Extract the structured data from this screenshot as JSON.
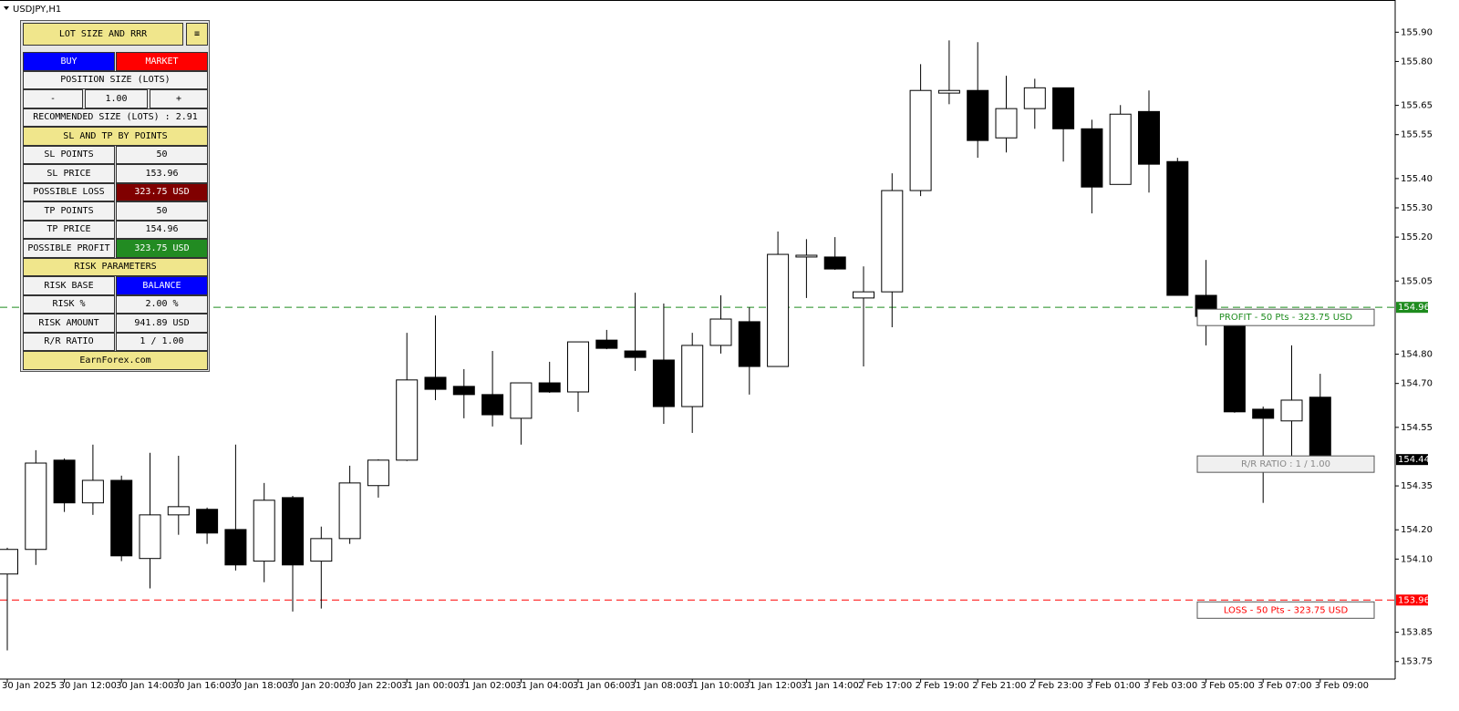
{
  "chart_data": {
    "type": "candlestick",
    "title": "USDJPY,H1",
    "categories": [
      "30 Jan 2025",
      null,
      "30 Jan 12:00",
      null,
      "30 Jan 14:00",
      null,
      "30 Jan 16:00",
      null,
      "30 Jan 18:00",
      null,
      "30 Jan 20:00",
      null,
      "30 Jan 22:00",
      null,
      "31 Jan 00:00",
      null,
      "31 Jan 02:00",
      null,
      "31 Jan 04:00",
      null,
      "31 Jan 06:00",
      null,
      "31 Jan 08:00",
      null,
      "31 Jan 10:00",
      null,
      "31 Jan 12:00",
      null,
      "31 Jan 14:00",
      null,
      "2 Feb 17:00",
      null,
      "2 Feb 19:00",
      null,
      "2 Feb 21:00",
      null,
      "2 Feb 23:00",
      null,
      "3 Feb 01:00",
      null,
      "3 Feb 03:00",
      null,
      "3 Feb 05:00",
      null,
      "3 Feb 07:00",
      null,
      "3 Feb 09:00"
    ],
    "open": [
      154.049,
      154.133,
      154.438,
      154.292,
      154.369,
      154.102,
      154.251,
      154.27,
      154.201,
      154.093,
      154.31,
      154.093,
      154.17,
      154.351,
      154.438,
      154.721,
      154.69,
      154.662,
      154.581,
      154.702,
      154.671,
      154.848,
      154.811,
      154.78,
      154.621,
      154.83,
      154.911,
      154.758,
      155.132,
      155.132,
      154.992,
      155.013,
      155.359,
      155.692,
      155.701,
      155.539,
      155.639,
      155.71,
      155.57,
      155.38,
      155.629,
      155.458,
      155.001,
      154.929,
      154.612,
      154.572,
      154.653
    ],
    "high": [
      154.139,
      154.472,
      154.444,
      154.491,
      154.385,
      154.463,
      154.453,
      154.276,
      154.491,
      154.36,
      154.316,
      154.211,
      154.419,
      154.441,
      154.873,
      154.932,
      154.749,
      154.811,
      154.702,
      154.774,
      154.842,
      154.883,
      155.01,
      154.973,
      154.873,
      155.001,
      154.96,
      155.219,
      155.193,
      155.2,
      155.1,
      155.418,
      155.791,
      155.872,
      155.866,
      155.751,
      155.741,
      155.71,
      155.601,
      155.651,
      155.701,
      155.471,
      155.122,
      154.954,
      154.621,
      154.83,
      154.733
    ],
    "low": [
      153.788,
      154.08,
      154.261,
      154.251,
      154.093,
      154.0,
      154.183,
      154.152,
      154.061,
      154.021,
      153.921,
      153.931,
      154.152,
      154.31,
      154.435,
      154.643,
      154.581,
      154.553,
      154.491,
      154.668,
      154.603,
      154.817,
      154.743,
      154.562,
      154.531,
      154.802,
      154.662,
      154.758,
      154.992,
      155.088,
      154.758,
      154.892,
      155.34,
      155.654,
      155.471,
      155.489,
      155.57,
      155.458,
      155.281,
      155.38,
      155.352,
      155.001,
      154.83,
      154.6,
      154.292,
      154.419,
      154.438
    ],
    "close": [
      154.133,
      154.428,
      154.292,
      154.369,
      154.111,
      154.251,
      154.279,
      154.189,
      154.08,
      154.301,
      154.08,
      154.17,
      154.36,
      154.438,
      154.712,
      154.68,
      154.662,
      154.593,
      154.702,
      154.671,
      154.842,
      154.82,
      154.789,
      154.621,
      154.83,
      154.92,
      154.758,
      155.141,
      155.138,
      155.091,
      155.013,
      155.359,
      155.701,
      155.701,
      155.53,
      155.639,
      155.71,
      155.57,
      155.371,
      155.62,
      155.449,
      155.001,
      154.929,
      154.603,
      154.581,
      154.643,
      154.438
    ],
    "bull_color": "#ffffff",
    "bear_color": "#000000",
    "ylim": [
      153.69,
      156.01
    ],
    "yticks": [
      {
        "value": 155.9,
        "label": "155.90"
      },
      {
        "value": 155.8,
        "label": "155.80"
      },
      155.65,
      155.55,
      {
        "value": 155.4,
        "label": "155.40"
      },
      {
        "value": 155.3,
        "label": "155.30"
      },
      {
        "value": 155.2,
        "label": "155.20"
      },
      155.05,
      {
        "value": 154.8,
        "label": "154.80"
      },
      {
        "value": 154.7,
        "label": "154.70"
      },
      154.55,
      154.35,
      {
        "value": 154.2,
        "label": "154.20"
      },
      {
        "value": 154.1,
        "label": "154.10"
      },
      153.85,
      153.75
    ],
    "price_lines": [
      {
        "value": 154.96,
        "color": "#1e8c1e",
        "label": "PROFIT - 50 Pts - 323.75 USD"
      },
      {
        "value": 153.96,
        "color": "#ff0000",
        "label": "LOSS - 50 Pts - 323.75 USD"
      }
    ],
    "current_price": 154.44,
    "rr_label": "R/R RATIO : 1 / 1.00"
  },
  "panel": {
    "title": "LOT SIZE AND RRR",
    "direction": [
      "BUY",
      "MARKET"
    ],
    "position_size_label": "POSITION SIZE (LOTS)",
    "lot_controls": [
      "-",
      "1.00",
      "+"
    ],
    "recommended": "RECOMMENDED SIZE (LOTS) : 2.91",
    "sltp_header": "SL AND TP BY POINTS",
    "sltp_rows": [
      [
        "SL POINTS",
        "50"
      ],
      [
        "SL PRICE",
        "153.96"
      ],
      [
        "POSSIBLE LOSS",
        "323.75 USD"
      ],
      [
        "TP POINTS",
        "50"
      ],
      [
        "TP PRICE",
        "154.96"
      ],
      [
        "POSSIBLE PROFIT",
        "323.75 USD"
      ]
    ],
    "risk_header": "RISK PARAMETERS",
    "risk_rows": [
      [
        "RISK BASE",
        "BALANCE"
      ],
      [
        "RISK %",
        "2.00 %"
      ],
      [
        "RISK AMOUNT",
        "941.89 USD"
      ],
      [
        "R/R RATIO",
        "1 / 1.00"
      ]
    ],
    "footer": "EarnForex.com"
  }
}
